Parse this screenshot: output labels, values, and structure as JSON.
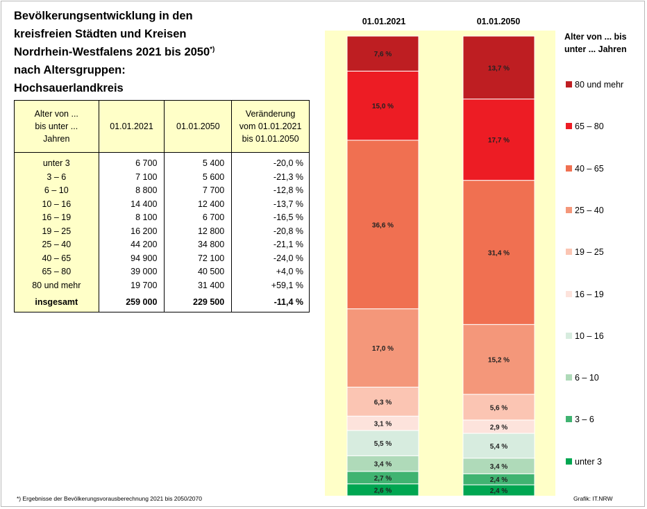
{
  "title_lines": [
    "Bevölkerungsentwicklung in den",
    "kreisfreien Städten und Kreisen",
    "Nordrhein-Westfalens 2021 bis 2050",
    "nach Altersgruppen:",
    "Hochsauerlandkreis"
  ],
  "title_sup": "*)",
  "table": {
    "headers": [
      "Alter von ...\nbis unter ...\nJahren",
      "01.01.2021",
      "01.01.2050",
      "Veränderung\nvom 01.01.2021\nbis 01.01.2050"
    ],
    "rows": [
      {
        "age": "unter 3",
        "v2021": "6 700",
        "v2050": "5 400",
        "change": "-20,0 %"
      },
      {
        "age": "3 – 6",
        "v2021": "7 100",
        "v2050": "5 600",
        "change": "-21,3 %"
      },
      {
        "age": "6 – 10",
        "v2021": "8 800",
        "v2050": "7 700",
        "change": "-12,8 %"
      },
      {
        "age": "10 – 16",
        "v2021": "14 400",
        "v2050": "12 400",
        "change": "-13,7 %"
      },
      {
        "age": "16 – 19",
        "v2021": "8 100",
        "v2050": "6 700",
        "change": "-16,5 %"
      },
      {
        "age": "19 – 25",
        "v2021": "16 200",
        "v2050": "12 800",
        "change": "-20,8 %"
      },
      {
        "age": "25 – 40",
        "v2021": "44 200",
        "v2050": "34 800",
        "change": "-21,1 %"
      },
      {
        "age": "40 – 65",
        "v2021": "94 900",
        "v2050": "72 100",
        "change": "-24,0 %"
      },
      {
        "age": "65 – 80",
        "v2021": "39 000",
        "v2050": "40 500",
        "change": "+4,0 %"
      },
      {
        "age": "80 und mehr",
        "v2021": "19 700",
        "v2050": "31 400",
        "change": "+59,1 %"
      }
    ],
    "total": {
      "age": "insgesamt",
      "v2021": "259 000",
      "v2050": "229 500",
      "change": "-11,4 %"
    }
  },
  "chart_data": {
    "type": "bar",
    "stacked": true,
    "normalized_percent": true,
    "categories": [
      "01.01.2021",
      "01.01.2050"
    ],
    "legend_title": "Alter von ... bis\nunter ... Jahren",
    "legend_position": "right",
    "series": [
      {
        "name": "unter 3",
        "color": "#00a651",
        "values": [
          2.6,
          2.4
        ],
        "labels": [
          "2,6 %",
          "2,4 %"
        ]
      },
      {
        "name": "3 – 6",
        "color": "#40b371",
        "values": [
          2.7,
          2.4
        ],
        "labels": [
          "2,7 %",
          "2,4 %"
        ]
      },
      {
        "name": "6 – 10",
        "color": "#afdab9",
        "values": [
          3.4,
          3.4
        ],
        "labels": [
          "3,4 %",
          "3,4 %"
        ]
      },
      {
        "name": "10 – 16",
        "color": "#d7ecdf",
        "values": [
          5.5,
          5.4
        ],
        "labels": [
          "5,5 %",
          "5,4 %"
        ]
      },
      {
        "name": "16 – 19",
        "color": "#fde3dc",
        "values": [
          3.1,
          2.9
        ],
        "labels": [
          "3,1 %",
          "2,9 %"
        ]
      },
      {
        "name": "19 – 25",
        "color": "#fbc5b3",
        "values": [
          6.3,
          5.6
        ],
        "labels": [
          "6,3 %",
          "5,6 %"
        ]
      },
      {
        "name": "25 – 40",
        "color": "#f4977a",
        "values": [
          17.0,
          15.2
        ],
        "labels": [
          "17,0 %",
          "15,2 %"
        ]
      },
      {
        "name": "40 – 65",
        "color": "#f07051",
        "values": [
          36.6,
          31.4
        ],
        "labels": [
          "36,6 %",
          "31,4 %"
        ]
      },
      {
        "name": "65 – 80",
        "color": "#ed1c24",
        "values": [
          15.0,
          17.7
        ],
        "labels": [
          "15,0 %",
          "17,7 %"
        ]
      },
      {
        "name": "80 und mehr",
        "color": "#be1e22",
        "values": [
          7.6,
          13.7
        ],
        "labels": [
          "7,6 %",
          "13,7 %"
        ]
      }
    ]
  },
  "footnote": "*) Ergebnisse der Bevölkerungsvorausberechnung 2021 bis 2050/2070",
  "source": "Grafik: IT.NRW"
}
